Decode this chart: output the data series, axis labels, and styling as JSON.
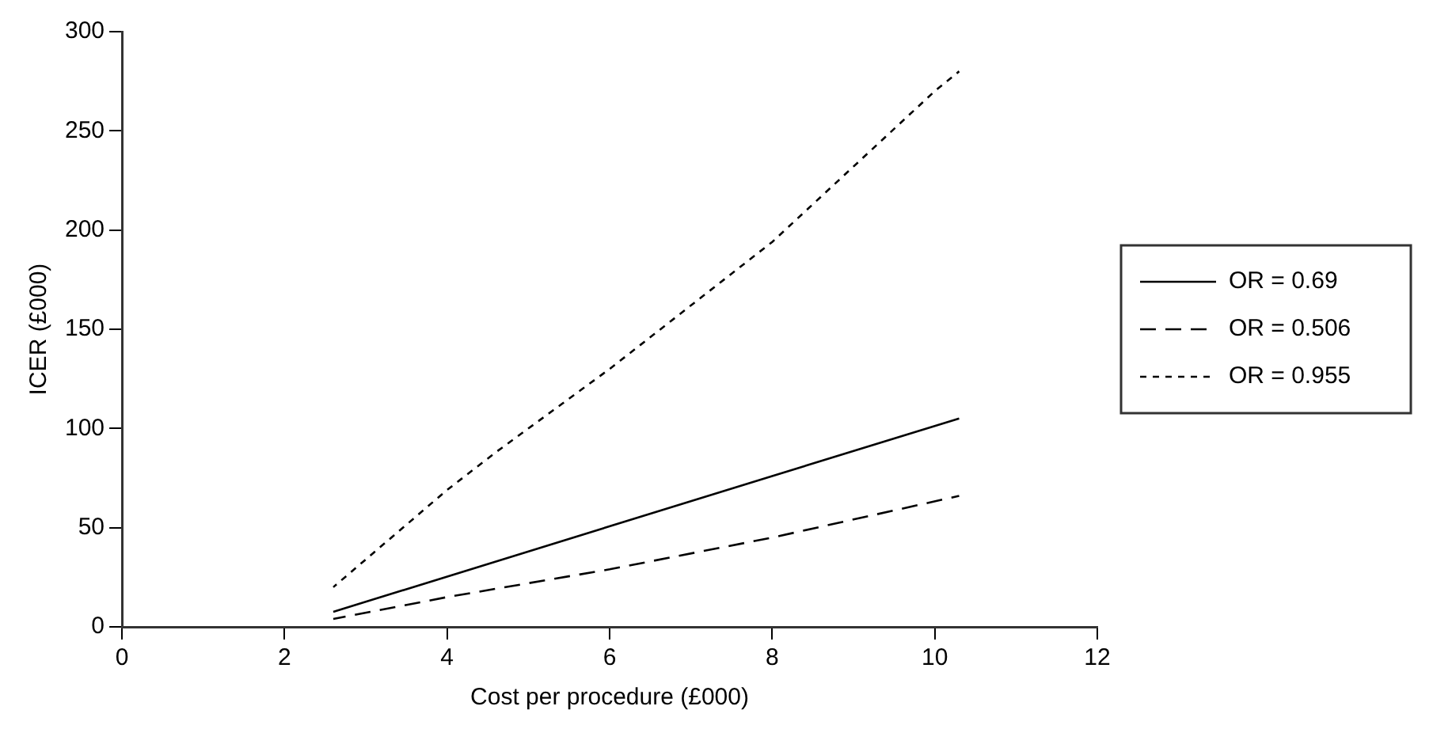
{
  "chart_data": {
    "type": "line",
    "xlabel": "Cost per procedure (£000)",
    "ylabel": "ICER (£000)",
    "xlim": [
      0,
      12
    ],
    "xticks": [
      0,
      2,
      4,
      6,
      8,
      10,
      12
    ],
    "ylim": [
      0,
      300
    ],
    "yticks": [
      0,
      50,
      100,
      150,
      200,
      250,
      300
    ],
    "grid": false,
    "legend": "right",
    "marker": "none",
    "series": [
      {
        "name": "OR = 0.69",
        "color": "#000000",
        "line_style": "solid",
        "x": [
          2.6,
          8,
          10.3
        ],
        "values": [
          7.6,
          76,
          105
        ]
      },
      {
        "name": "OR = 0.506",
        "color": "#000000",
        "line_style": "dashed",
        "x": [
          2.6,
          4,
          6,
          8,
          10.3
        ],
        "values": [
          4,
          15,
          29,
          45,
          66
        ]
      },
      {
        "name": "OR = 0.955",
        "color": "#000000",
        "line_style": "dotted",
        "x": [
          2.6,
          4,
          4.6,
          5.3,
          6,
          8,
          10,
          10.3
        ],
        "values": [
          20,
          69,
          88,
          109,
          130,
          194,
          270,
          280
        ]
      }
    ]
  }
}
